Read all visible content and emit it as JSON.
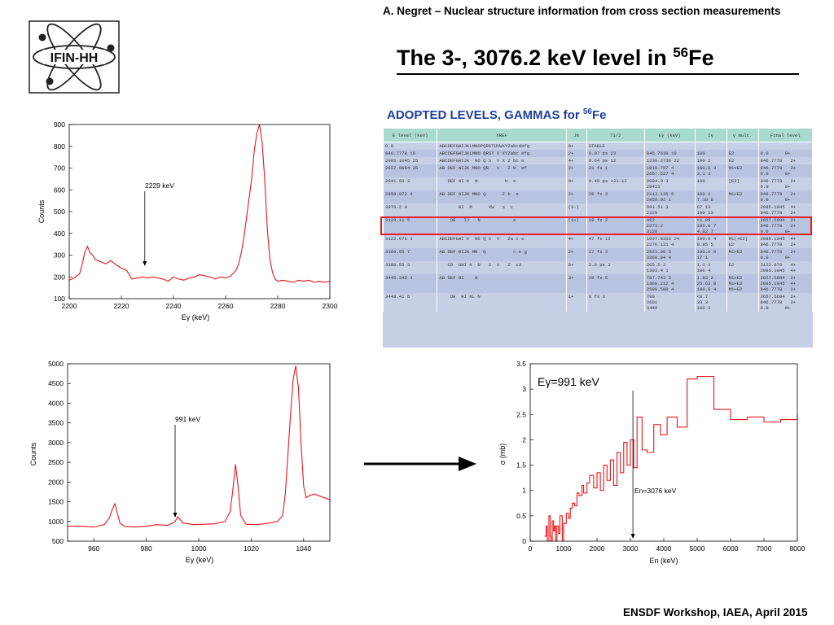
{
  "header": {
    "author_line": "A. Negret – Nuclear structure information from cross section measurements"
  },
  "logo": {
    "text": "IFIN-HH"
  },
  "title": {
    "main": "The 3-, 3076.2 keV level in ",
    "mass": "56",
    "element": "Fe"
  },
  "adopted": {
    "heading": "ADOPTED LEVELS, GAMMAS for ",
    "heading_mass": "56",
    "heading_element": "Fe",
    "columns": [
      "E level (keV)",
      "XREF",
      "Jπ",
      "T1/2",
      "Eγ (keV)",
      "Iγ",
      "γ mult.",
      "Final level"
    ],
    "rows": [
      {
        "e": "0.0",
        "x": "ABCDEFGHIJKLMNOPQRSTUVWXYZabcdefg",
        "j": "0+",
        "t": "STABLE",
        "eg": "",
        "ig": "",
        "m": "",
        "f": ""
      },
      {
        "e": "846.7778 19",
        "x": "ABCDEFGHIJKLMNO QRST V XYZabc efg",
        "j": "2+",
        "t": "6.07 ps 23",
        "eg": "846.7638 19",
        "ig": "100",
        "m": "E2",
        "f": "0.0      0+"
      },
      {
        "e": "2085.1045 25",
        "x": "ABCDEFGHIJK  NO Q S  V X Z bc e",
        "j": "4+",
        "t": "0.64 ps 12",
        "eg": "1238.2736 22",
        "ig": "100 2",
        "m": "E2",
        "f": "846.7778   2+"
      },
      {
        "e": "2657.5694 25",
        "x": "AB DEF HIJK MNO QR   V   Z b  ef",
        "j": "2+",
        "t": "21 fs 1",
        "eg": "1810.757 4\n2657.527 4",
        "ig": "100.0 3\n3.1 3",
        "m": "M1+E2",
        "f": "846.7778   2+\n0.0      0+"
      },
      {
        "e": "2941.50 3",
        "x": "   DEF HI K  N          b  e",
        "j": "0+",
        "t": "0.45 ps +21-12",
        "eg": "2094.9 3\n2941S",
        "ig": "100",
        "m": "[E2]",
        "f": "846.7778   2+\n0.0      0+"
      },
      {
        "e": "2959.972 4",
        "x": "AB DEF HIJK MNO Q      Z b  e",
        "j": "2+",
        "t": "26 fs 3",
        "eg": "2113.135 5\n2959.92 1",
        "ig": "100 2\n7.18 8",
        "m": "M1+E2",
        "f": "846.7778   2+\n0.0      0+"
      },
      {
        "e": "3076.2 4",
        "x": "       HI  M      VW   a  c",
        "j": "(3-)",
        "t": "",
        "eg": "991.51 3\n2229",
        "ig": "67 13\n100 13",
        "m": "",
        "f": "2085.1045  4+\n846.7778   2+"
      },
      {
        "e": "3120.11 5",
        "x": "    DE   IJ   N            e",
        "j": "(1+)",
        "t": "19 fs 2",
        "eg": "462\n2273.2\n3120",
        "ig": "<1.05\n100.0 7\n4.82 7",
        "m": "",
        "f": "2657.5694  2+\n846.7778   2+\n0.0      0+"
      },
      {
        "e": "3122.970 3",
        "x": "ABCDEFGHI K  NO Q S  V   Za c e",
        "j": "4+",
        "t": "47 fs 12",
        "eg": "1037.8333 24\n2276.131 4",
        "ig": "100.0 4\n0.85 5",
        "m": "M1(+E2)\nE2",
        "f": "2085.1045  4+\n846.7778   2+"
      },
      {
        "e": "3369.95 7",
        "x": "AB DEF HIJK MN  Q          c e g",
        "j": "2+",
        "t": "17 fs 3",
        "eg": "2523.06 5\n3369.84 4",
        "ig": "100.0 9\n17 1",
        "m": "M1+E2",
        "f": "846.7778   2+\n0.0      0+"
      },
      {
        "e": "3388.55 3",
        "x": "   CD  GHI K  N   S  V   Z  cd",
        "j": "6+",
        "t": "2.9 ps 2",
        "eg": "265.5 2\n1303.4 1",
        "ig": "1.3 3\n100 4",
        "m": "E2",
        "f": "3122.970   4+\n2085.1045  4+"
      },
      {
        "e": "3445.340 3",
        "x": "AB DEF HI    N",
        "j": "3+",
        "t": "29 fs 5",
        "eg": "787.743 5\n1360.212 4\n2598.500 4",
        "ig": "1.83 2\n25.63 8\n100.0 4",
        "m": "M1+E2\nM1+E2\nM1+E2",
        "f": "2657.5694  2+\n2085.1045  4+\n846.7778   2+"
      },
      {
        "e": "3448.41 6",
        "x": "    DE  HI KL N",
        "j": "1+",
        "t": "8 fs 3",
        "eg": "790\n2601\n3448",
        "ig": "<0.7\n33 3\n100 3",
        "m": "",
        "f": "2657.5694  2+\n846.7778   2+\n0.0      0+"
      }
    ]
  },
  "spectrum1": {
    "xlabel": "Eγ (keV)",
    "ylabel": "Counts",
    "annotation": "2229 keV",
    "xticks": [
      "2200",
      "2220",
      "2240",
      "2260",
      "2280",
      "2300"
    ],
    "yticks": [
      "100",
      "200",
      "300",
      "400",
      "500",
      "600",
      "700",
      "800",
      "900"
    ]
  },
  "spectrum2": {
    "xlabel": "Eγ (keV)",
    "ylabel": "Counts",
    "annotation": "991 keV",
    "xticks": [
      "960",
      "980",
      "1000",
      "1020",
      "1040"
    ],
    "yticks": [
      "500",
      "1000",
      "1500",
      "2000",
      "2500",
      "3000",
      "3500",
      "4000",
      "4500",
      "5000"
    ]
  },
  "xsection": {
    "xlabel": "En (keV)",
    "ylabel": "σ (mb)",
    "title": "Eγ=991 keV",
    "annotation": "En=3076 keV",
    "xticks": [
      "0",
      "1000",
      "2000",
      "3000",
      "4000",
      "5000",
      "6000",
      "7000",
      "8000"
    ],
    "yticks": [
      "0",
      "0.5",
      "1",
      "1.5",
      "2",
      "2.5",
      "3",
      "3.5"
    ]
  },
  "footer": {
    "text": "ENSDF Workshop, IAEA, April 2015"
  },
  "colors": {
    "curve": "#e8161c",
    "highlight": "#e81c1c",
    "heading": "#1f3e9e",
    "table_header": "#a8dad0",
    "table_body": "#c5cfe6"
  },
  "chart_data": [
    {
      "type": "line",
      "name": "gamma spectrum around 2229 keV",
      "xlabel": "Eγ (keV)",
      "ylabel": "Counts",
      "xlim": [
        2200,
        2300
      ],
      "ylim": [
        100,
        900
      ],
      "annotation": {
        "text": "2229 keV",
        "x": 2229
      },
      "x": [
        2200,
        2202,
        2204,
        2205,
        2206,
        2207,
        2208,
        2209,
        2210,
        2212,
        2214,
        2216,
        2218,
        2220,
        2222,
        2224,
        2226,
        2228,
        2230,
        2232,
        2234,
        2236,
        2238,
        2240,
        2242,
        2244,
        2246,
        2248,
        2250,
        2252,
        2254,
        2256,
        2258,
        2260,
        2262,
        2264,
        2265,
        2266,
        2267,
        2268,
        2269,
        2270,
        2271,
        2272,
        2273,
        2274,
        2275,
        2276,
        2277,
        2278,
        2279,
        2280,
        2282,
        2284,
        2286,
        2288,
        2290,
        2292,
        2294,
        2296,
        2298,
        2300
      ],
      "y": [
        185,
        195,
        215,
        260,
        315,
        340,
        310,
        300,
        280,
        270,
        260,
        275,
        255,
        240,
        230,
        190,
        195,
        200,
        195,
        200,
        195,
        190,
        180,
        200,
        190,
        185,
        195,
        200,
        210,
        205,
        200,
        190,
        200,
        195,
        205,
        230,
        260,
        310,
        380,
        470,
        560,
        650,
        780,
        860,
        900,
        820,
        650,
        420,
        280,
        220,
        190,
        180,
        185,
        180,
        175,
        185,
        180,
        185,
        175,
        180,
        175,
        180
      ]
    },
    {
      "type": "line",
      "name": "gamma spectrum around 991 keV",
      "xlabel": "Eγ (keV)",
      "ylabel": "Counts",
      "xlim": [
        950,
        1050
      ],
      "ylim": [
        500,
        5000
      ],
      "annotation": {
        "text": "991 keV",
        "x": 991
      },
      "x": [
        950,
        955,
        960,
        964,
        966,
        967,
        968,
        969,
        970,
        972,
        976,
        980,
        984,
        988,
        990,
        991,
        992,
        994,
        998,
        1002,
        1006,
        1010,
        1012,
        1013,
        1014,
        1015,
        1016,
        1018,
        1022,
        1026,
        1030,
        1032,
        1033,
        1034,
        1035,
        1036,
        1037,
        1038,
        1039,
        1040,
        1041,
        1042,
        1044,
        1046,
        1048,
        1050
      ],
      "y": [
        880,
        880,
        860,
        920,
        1100,
        1300,
        1450,
        1200,
        950,
        870,
        860,
        880,
        920,
        900,
        960,
        1000,
        1120,
        960,
        920,
        930,
        940,
        1000,
        1250,
        1800,
        2450,
        1900,
        1150,
        930,
        920,
        950,
        1000,
        1150,
        1700,
        2700,
        3700,
        4600,
        4950,
        4400,
        3000,
        1900,
        1600,
        1650,
        1700,
        1650,
        1600,
        1550
      ]
    },
    {
      "type": "line",
      "name": "cross section vs neutron energy",
      "title": "Eγ=991 keV",
      "xlabel": "En (keV)",
      "ylabel": "σ (mb)",
      "xlim": [
        0,
        8000
      ],
      "ylim": [
        0,
        3.5
      ],
      "annotation": {
        "text": "En=3076 keV",
        "x": 3076
      },
      "x": [
        430,
        480,
        510,
        560,
        600,
        620,
        660,
        700,
        730,
        760,
        800,
        850,
        890,
        960,
        1000,
        1080,
        1150,
        1200,
        1260,
        1330,
        1400,
        1460,
        1550,
        1600,
        1700,
        1780,
        1900,
        2000,
        2100,
        2200,
        2300,
        2400,
        2500,
        2600,
        2700,
        2800,
        2900,
        3000,
        3100,
        3200,
        3350,
        3500,
        3700,
        3900,
        4100,
        4400,
        4700,
        5000,
        5500,
        6000,
        6500,
        7000,
        7500,
        8000
      ],
      "y": [
        0.1,
        0.3,
        0.0,
        0.5,
        0.1,
        0.0,
        0.4,
        0.2,
        0.3,
        0.0,
        0.3,
        0.15,
        0.5,
        0.0,
        0.35,
        0.55,
        0.45,
        0.65,
        0.75,
        0.7,
        0.95,
        0.9,
        1.1,
        0.95,
        1.15,
        1.3,
        1.05,
        1.35,
        1.0,
        1.5,
        1.2,
        1.6,
        1.1,
        1.75,
        1.35,
        1.95,
        1.5,
        2.0,
        1.45,
        2.45,
        1.8,
        1.75,
        2.3,
        2.1,
        2.45,
        2.25,
        3.2,
        3.25,
        2.6,
        2.4,
        2.45,
        2.35,
        2.4,
        2.5
      ]
    }
  ]
}
